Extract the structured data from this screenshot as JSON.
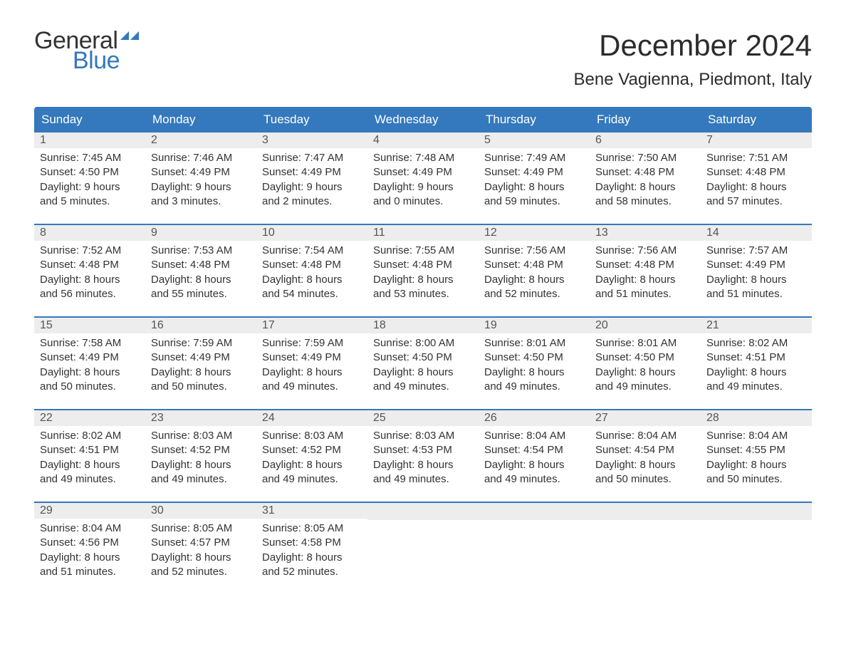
{
  "logo": {
    "word1": "General",
    "word2": "Blue"
  },
  "title": "December 2024",
  "location": "Bene Vagienna, Piedmont, Italy",
  "colors": {
    "header_bg": "#3478bd",
    "header_text": "#ffffff",
    "daynum_bg": "#ededed",
    "week_border": "#3478bd",
    "logo_blue": "#3478bd",
    "body_text": "#333333",
    "background": "#ffffff"
  },
  "weekdays": [
    "Sunday",
    "Monday",
    "Tuesday",
    "Wednesday",
    "Thursday",
    "Friday",
    "Saturday"
  ],
  "weeks": [
    [
      {
        "n": "1",
        "sr": "7:45 AM",
        "ss": "4:50 PM",
        "dl1": "9 hours",
        "dl2": "and 5 minutes."
      },
      {
        "n": "2",
        "sr": "7:46 AM",
        "ss": "4:49 PM",
        "dl1": "9 hours",
        "dl2": "and 3 minutes."
      },
      {
        "n": "3",
        "sr": "7:47 AM",
        "ss": "4:49 PM",
        "dl1": "9 hours",
        "dl2": "and 2 minutes."
      },
      {
        "n": "4",
        "sr": "7:48 AM",
        "ss": "4:49 PM",
        "dl1": "9 hours",
        "dl2": "and 0 minutes."
      },
      {
        "n": "5",
        "sr": "7:49 AM",
        "ss": "4:49 PM",
        "dl1": "8 hours",
        "dl2": "and 59 minutes."
      },
      {
        "n": "6",
        "sr": "7:50 AM",
        "ss": "4:48 PM",
        "dl1": "8 hours",
        "dl2": "and 58 minutes."
      },
      {
        "n": "7",
        "sr": "7:51 AM",
        "ss": "4:48 PM",
        "dl1": "8 hours",
        "dl2": "and 57 minutes."
      }
    ],
    [
      {
        "n": "8",
        "sr": "7:52 AM",
        "ss": "4:48 PM",
        "dl1": "8 hours",
        "dl2": "and 56 minutes."
      },
      {
        "n": "9",
        "sr": "7:53 AM",
        "ss": "4:48 PM",
        "dl1": "8 hours",
        "dl2": "and 55 minutes."
      },
      {
        "n": "10",
        "sr": "7:54 AM",
        "ss": "4:48 PM",
        "dl1": "8 hours",
        "dl2": "and 54 minutes."
      },
      {
        "n": "11",
        "sr": "7:55 AM",
        "ss": "4:48 PM",
        "dl1": "8 hours",
        "dl2": "and 53 minutes."
      },
      {
        "n": "12",
        "sr": "7:56 AM",
        "ss": "4:48 PM",
        "dl1": "8 hours",
        "dl2": "and 52 minutes."
      },
      {
        "n": "13",
        "sr": "7:56 AM",
        "ss": "4:48 PM",
        "dl1": "8 hours",
        "dl2": "and 51 minutes."
      },
      {
        "n": "14",
        "sr": "7:57 AM",
        "ss": "4:49 PM",
        "dl1": "8 hours",
        "dl2": "and 51 minutes."
      }
    ],
    [
      {
        "n": "15",
        "sr": "7:58 AM",
        "ss": "4:49 PM",
        "dl1": "8 hours",
        "dl2": "and 50 minutes."
      },
      {
        "n": "16",
        "sr": "7:59 AM",
        "ss": "4:49 PM",
        "dl1": "8 hours",
        "dl2": "and 50 minutes."
      },
      {
        "n": "17",
        "sr": "7:59 AM",
        "ss": "4:49 PM",
        "dl1": "8 hours",
        "dl2": "and 49 minutes."
      },
      {
        "n": "18",
        "sr": "8:00 AM",
        "ss": "4:50 PM",
        "dl1": "8 hours",
        "dl2": "and 49 minutes."
      },
      {
        "n": "19",
        "sr": "8:01 AM",
        "ss": "4:50 PM",
        "dl1": "8 hours",
        "dl2": "and 49 minutes."
      },
      {
        "n": "20",
        "sr": "8:01 AM",
        "ss": "4:50 PM",
        "dl1": "8 hours",
        "dl2": "and 49 minutes."
      },
      {
        "n": "21",
        "sr": "8:02 AM",
        "ss": "4:51 PM",
        "dl1": "8 hours",
        "dl2": "and 49 minutes."
      }
    ],
    [
      {
        "n": "22",
        "sr": "8:02 AM",
        "ss": "4:51 PM",
        "dl1": "8 hours",
        "dl2": "and 49 minutes."
      },
      {
        "n": "23",
        "sr": "8:03 AM",
        "ss": "4:52 PM",
        "dl1": "8 hours",
        "dl2": "and 49 minutes."
      },
      {
        "n": "24",
        "sr": "8:03 AM",
        "ss": "4:52 PM",
        "dl1": "8 hours",
        "dl2": "and 49 minutes."
      },
      {
        "n": "25",
        "sr": "8:03 AM",
        "ss": "4:53 PM",
        "dl1": "8 hours",
        "dl2": "and 49 minutes."
      },
      {
        "n": "26",
        "sr": "8:04 AM",
        "ss": "4:54 PM",
        "dl1": "8 hours",
        "dl2": "and 49 minutes."
      },
      {
        "n": "27",
        "sr": "8:04 AM",
        "ss": "4:54 PM",
        "dl1": "8 hours",
        "dl2": "and 50 minutes."
      },
      {
        "n": "28",
        "sr": "8:04 AM",
        "ss": "4:55 PM",
        "dl1": "8 hours",
        "dl2": "and 50 minutes."
      }
    ],
    [
      {
        "n": "29",
        "sr": "8:04 AM",
        "ss": "4:56 PM",
        "dl1": "8 hours",
        "dl2": "and 51 minutes."
      },
      {
        "n": "30",
        "sr": "8:05 AM",
        "ss": "4:57 PM",
        "dl1": "8 hours",
        "dl2": "and 52 minutes."
      },
      {
        "n": "31",
        "sr": "8:05 AM",
        "ss": "4:58 PM",
        "dl1": "8 hours",
        "dl2": "and 52 minutes."
      },
      null,
      null,
      null,
      null
    ]
  ],
  "labels": {
    "sunrise": "Sunrise: ",
    "sunset": "Sunset: ",
    "daylight": "Daylight: "
  }
}
